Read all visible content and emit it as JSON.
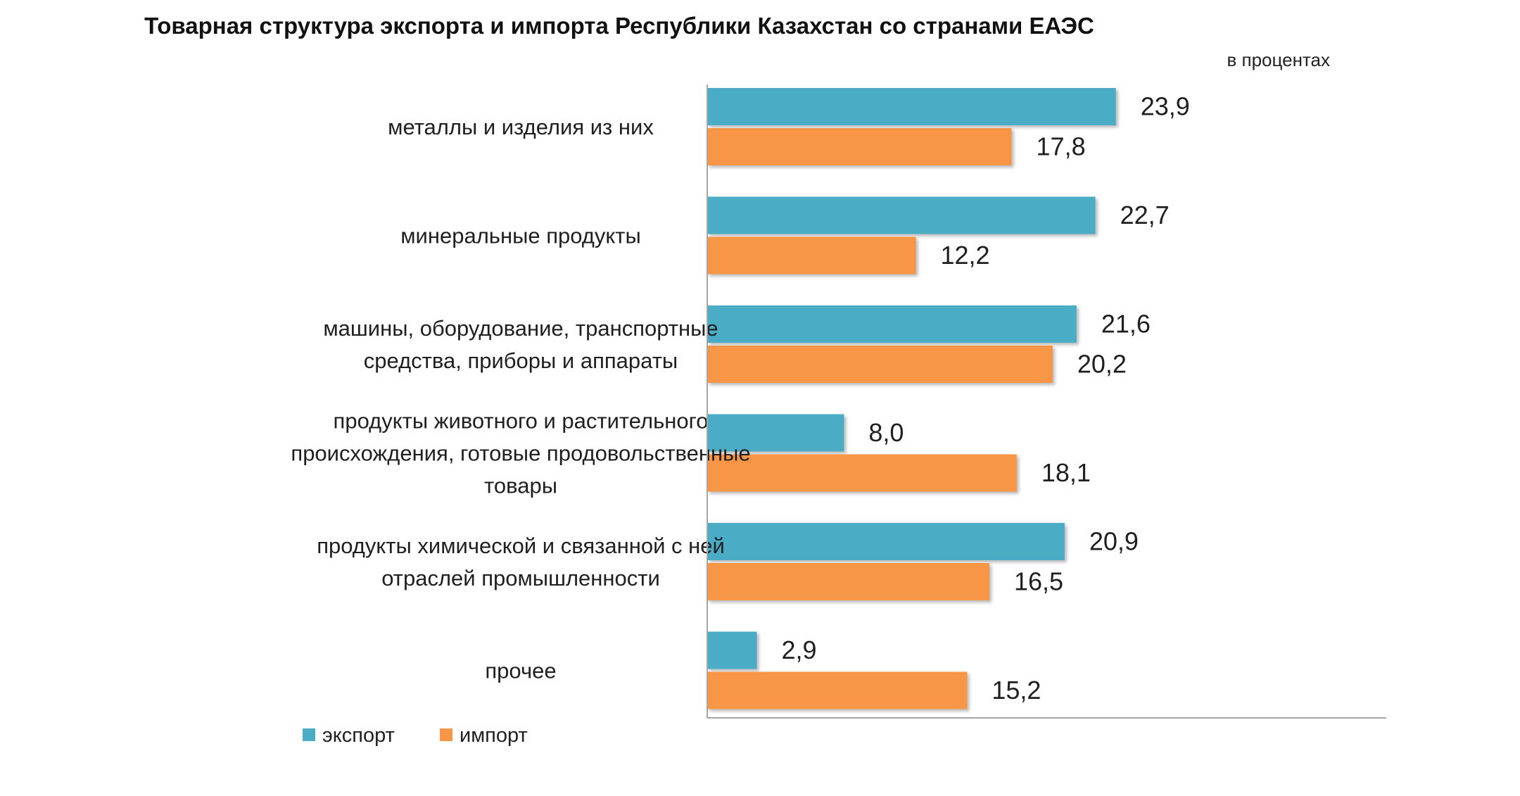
{
  "chart_data": {
    "type": "bar",
    "orientation": "horizontal",
    "title": "Товарная структура экспорта и импорта Республики Казахстан со странами ЕАЭС",
    "subtitle": "в процентах",
    "categories": [
      [
        "металлы и изделия из них"
      ],
      [
        "минеральные продукты"
      ],
      [
        "машины, оборудование, транспортные",
        "средства, приборы и аппараты"
      ],
      [
        "продукты животного и растительного",
        "происхождения, готовые продовольственные",
        "товары"
      ],
      [
        "продукты химической и связанной с ней",
        "отраслей промышленности"
      ],
      [
        "прочее"
      ]
    ],
    "series": [
      {
        "name": "экспорт",
        "color": "#4bacc6",
        "values": [
          23.9,
          22.7,
          21.6,
          8.0,
          20.9,
          2.9
        ],
        "labels": [
          "23,9",
          "22,7",
          "21,6",
          "8,0",
          "20,9",
          "2,9"
        ]
      },
      {
        "name": "импорт",
        "color": "#f79646",
        "values": [
          17.8,
          12.2,
          20.2,
          18.1,
          16.5,
          15.2
        ],
        "labels": [
          "17,8",
          "12,2",
          "20,2",
          "18,1",
          "16,5",
          "15,2"
        ]
      }
    ],
    "xlim": [
      0,
      40
    ],
    "legend": "bottom",
    "grid": false
  }
}
